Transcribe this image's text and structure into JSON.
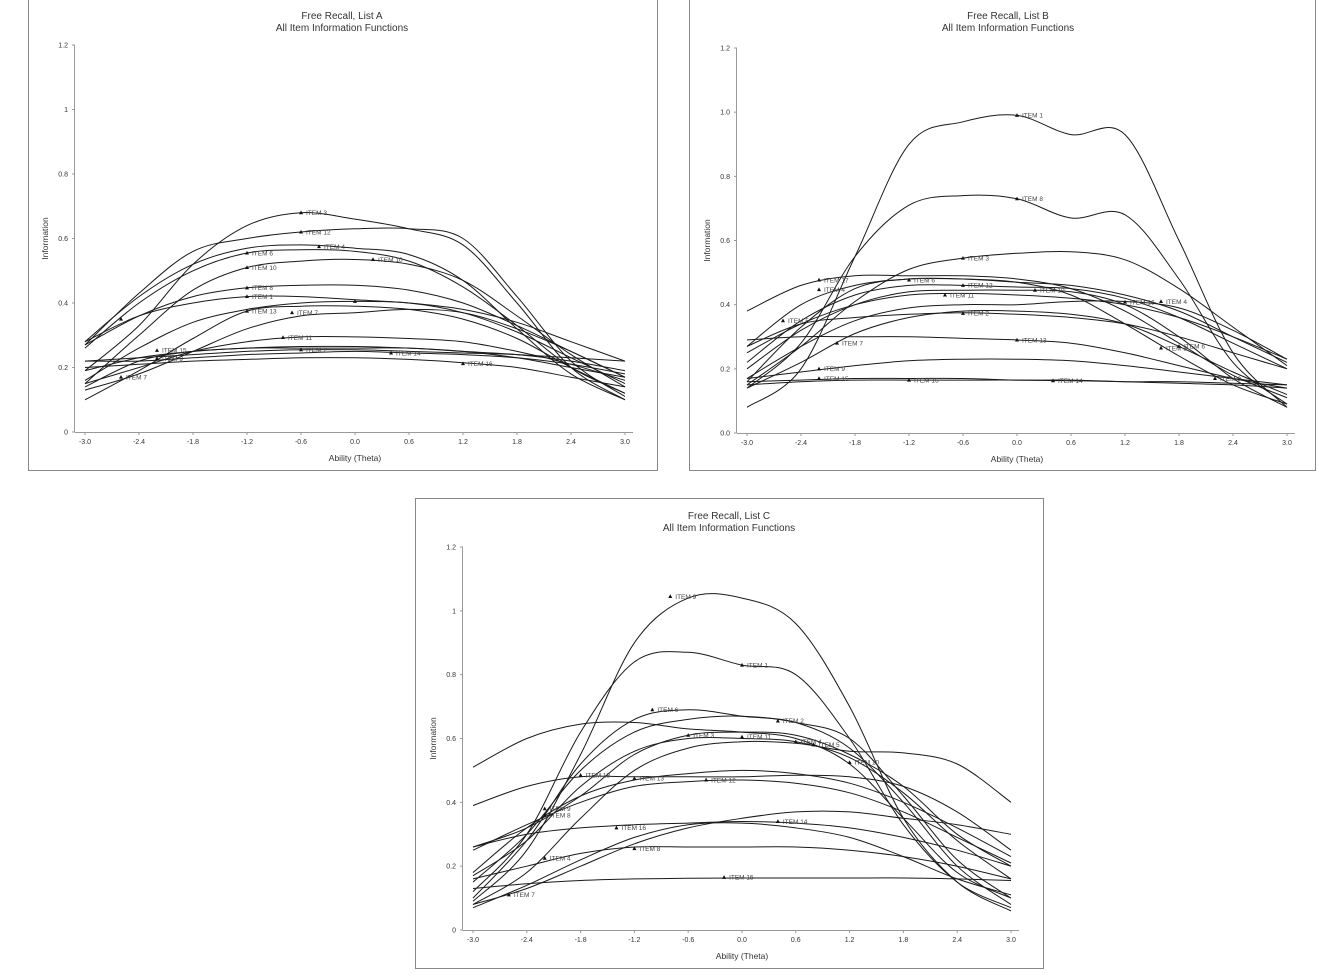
{
  "chart_data": [
    {
      "type": "line",
      "title": "Free Recall, List A",
      "subtitle": "All Item Information Functions",
      "xlabel": "Ability (Theta)",
      "ylabel": "Information",
      "xlim": [
        -3.0,
        3.0
      ],
      "ylim": [
        0,
        1.2
      ],
      "x_ticks": [
        "-3.0",
        "-2.4",
        "-1.8",
        "-1.2",
        "-0.6",
        "0.0",
        "0.6",
        "1.2",
        "1.8",
        "2.4",
        "3.0"
      ],
      "y_ticks": [
        "0",
        "0.2",
        "0.4",
        "0.6",
        "0.8",
        "1",
        "1.2"
      ],
      "grid": false,
      "x": [
        -3,
        -2.4,
        -1.8,
        -1.2,
        -0.6,
        0,
        0.6,
        1.2,
        1.8,
        2.4,
        3
      ],
      "curves": [
        [
          0.19,
          0.33,
          0.52,
          0.64,
          0.68,
          0.66,
          0.63,
          0.58,
          0.4,
          0.2,
          0.1
        ],
        [
          0.27,
          0.43,
          0.56,
          0.6,
          0.62,
          0.63,
          0.63,
          0.6,
          0.42,
          0.22,
          0.11
        ],
        [
          0.28,
          0.42,
          0.52,
          0.57,
          0.58,
          0.57,
          0.55,
          0.47,
          0.32,
          0.18,
          0.1
        ],
        [
          0.26,
          0.4,
          0.5,
          0.555,
          0.565,
          0.56,
          0.53,
          0.45,
          0.33,
          0.2,
          0.12
        ],
        [
          0.15,
          0.3,
          0.44,
          0.51,
          0.53,
          0.535,
          0.52,
          0.47,
          0.36,
          0.24,
          0.14
        ],
        [
          0.27,
          0.36,
          0.42,
          0.447,
          0.455,
          0.455,
          0.44,
          0.4,
          0.33,
          0.25,
          0.17
        ],
        [
          0.28,
          0.36,
          0.4,
          0.42,
          0.42,
          0.41,
          0.4,
          0.38,
          0.34,
          0.28,
          0.22
        ],
        [
          0.16,
          0.26,
          0.34,
          0.38,
          0.4,
          0.405,
          0.4,
          0.37,
          0.31,
          0.23,
          0.15
        ],
        [
          0.1,
          0.19,
          0.29,
          0.375,
          0.39,
          0.39,
          0.38,
          0.35,
          0.29,
          0.2,
          0.12
        ],
        [
          0.15,
          0.2,
          0.25,
          0.28,
          0.295,
          0.295,
          0.29,
          0.28,
          0.25,
          0.21,
          0.16
        ],
        [
          0.19,
          0.23,
          0.25,
          0.26,
          0.26,
          0.26,
          0.26,
          0.25,
          0.24,
          0.22,
          0.19
        ],
        [
          0.22,
          0.23,
          0.24,
          0.25,
          0.255,
          0.255,
          0.25,
          0.245,
          0.24,
          0.23,
          0.22
        ],
        [
          0.22,
          0.22,
          0.23,
          0.24,
          0.245,
          0.25,
          0.245,
          0.24,
          0.23,
          0.21,
          0.18
        ],
        [
          0.14,
          0.22,
          0.25,
          0.26,
          0.265,
          0.265,
          0.26,
          0.25,
          0.23,
          0.2,
          0.17
        ],
        [
          0.2,
          0.21,
          0.22,
          0.225,
          0.23,
          0.23,
          0.225,
          0.215,
          0.2,
          0.17,
          0.14
        ],
        [
          0.13,
          0.18,
          0.25,
          0.32,
          0.36,
          0.37,
          0.38,
          0.37,
          0.32,
          0.25,
          0.17
        ]
      ],
      "markers": [
        {
          "label": "ITEM 3",
          "x": -0.6,
          "y": 0.68
        },
        {
          "label": "ITEM 12",
          "x": -0.6,
          "y": 0.62
        },
        {
          "label": "ITEM 4",
          "x": -0.4,
          "y": 0.575
        },
        {
          "label": "ITEM 6",
          "x": -1.2,
          "y": 0.555
        },
        {
          "label": "ITEM 10",
          "x": 0.2,
          "y": 0.535
        },
        {
          "label": "ITEM 10",
          "x": -1.2,
          "y": 0.51
        },
        {
          "label": "ITEM 8",
          "x": -1.2,
          "y": 0.447
        },
        {
          "label": "ITEM 1",
          "x": -1.2,
          "y": 0.42
        },
        {
          "label": "",
          "x": 0.0,
          "y": 0.405
        },
        {
          "label": "",
          "x": -2.6,
          "y": 0.35
        },
        {
          "label": "ITEM 13",
          "x": -1.2,
          "y": 0.375
        },
        {
          "label": "ITEM 7",
          "x": -0.7,
          "y": 0.37
        },
        {
          "label": "ITEM 11",
          "x": -0.8,
          "y": 0.293
        },
        {
          "label": "ITEM 15",
          "x": -2.2,
          "y": 0.253
        },
        {
          "label": "ITEM 2",
          "x": -0.6,
          "y": 0.255
        },
        {
          "label": "ITEM 14",
          "x": 0.4,
          "y": 0.245
        },
        {
          "label": "ITEM 9",
          "x": -2.2,
          "y": 0.228
        },
        {
          "label": "ITEM 16",
          "x": 1.2,
          "y": 0.212
        },
        {
          "label": "ITEM 7",
          "x": -2.6,
          "y": 0.17
        }
      ]
    },
    {
      "type": "line",
      "title": "Free Recall, List B",
      "subtitle": "All Item Information Functions",
      "xlabel": "Ability (Theta)",
      "ylabel": "Information",
      "xlim": [
        -3.0,
        3.0
      ],
      "ylim": [
        0,
        1.2
      ],
      "x_ticks": [
        "-3.0",
        "-2.4",
        "-1.8",
        "-1.2",
        "-0.6",
        "0.0",
        "0.6",
        "1.2",
        "1.8",
        "2.4",
        "3.0"
      ],
      "y_ticks": [
        "0.0",
        "0.2",
        "0.4",
        "0.6",
        "0.8",
        "1.0",
        "1.2"
      ],
      "grid": false,
      "x": [
        -3,
        -2.4,
        -1.8,
        -1.2,
        -0.6,
        0,
        0.6,
        1.2,
        1.8,
        2.4,
        3
      ],
      "curves": [
        [
          0.08,
          0.2,
          0.55,
          0.9,
          0.97,
          0.99,
          0.93,
          0.93,
          0.6,
          0.25,
          0.08
        ],
        [
          0.14,
          0.28,
          0.55,
          0.71,
          0.74,
          0.73,
          0.67,
          0.68,
          0.48,
          0.22,
          0.09
        ],
        [
          0.15,
          0.27,
          0.41,
          0.51,
          0.545,
          0.56,
          0.565,
          0.54,
          0.45,
          0.33,
          0.21
        ],
        [
          0.38,
          0.46,
          0.49,
          0.49,
          0.49,
          0.48,
          0.45,
          0.38,
          0.28,
          0.18,
          0.11
        ],
        [
          0.27,
          0.4,
          0.46,
          0.48,
          0.48,
          0.47,
          0.46,
          0.43,
          0.38,
          0.3,
          0.22
        ],
        [
          0.16,
          0.33,
          0.45,
          0.48,
          0.48,
          0.47,
          0.43,
          0.34,
          0.24,
          0.15,
          0.09
        ],
        [
          0.22,
          0.35,
          0.43,
          0.46,
          0.46,
          0.455,
          0.45,
          0.42,
          0.36,
          0.28,
          0.2
        ],
        [
          0.2,
          0.32,
          0.4,
          0.44,
          0.445,
          0.445,
          0.44,
          0.4,
          0.3,
          0.17,
          0.08
        ],
        [
          0.25,
          0.34,
          0.4,
          0.43,
          0.435,
          0.43,
          0.42,
          0.4,
          0.36,
          0.3,
          0.23
        ],
        [
          0.17,
          0.27,
          0.35,
          0.39,
          0.4,
          0.4,
          0.41,
          0.41,
          0.39,
          0.32,
          0.23
        ],
        [
          0.27,
          0.34,
          0.36,
          0.37,
          0.375,
          0.37,
          0.36,
          0.34,
          0.3,
          0.25,
          0.2
        ],
        [
          0.29,
          0.3,
          0.3,
          0.3,
          0.295,
          0.29,
          0.28,
          0.25,
          0.21,
          0.17,
          0.14
        ],
        [
          0.14,
          0.22,
          0.31,
          0.36,
          0.38,
          0.38,
          0.37,
          0.34,
          0.27,
          0.19,
          0.12
        ],
        [
          0.17,
          0.19,
          0.21,
          0.225,
          0.23,
          0.23,
          0.225,
          0.21,
          0.19,
          0.17,
          0.15
        ],
        [
          0.16,
          0.165,
          0.17,
          0.17,
          0.17,
          0.165,
          0.165,
          0.16,
          0.16,
          0.155,
          0.15
        ],
        [
          0.15,
          0.16,
          0.165,
          0.165,
          0.165,
          0.165,
          0.163,
          0.16,
          0.155,
          0.15,
          0.14
        ]
      ],
      "markers": [
        {
          "label": "ITEM 1",
          "x": 0.0,
          "y": 0.99
        },
        {
          "label": "ITEM 8",
          "x": 0.0,
          "y": 0.73
        },
        {
          "label": "ITEM 3",
          "x": -0.6,
          "y": 0.545
        },
        {
          "label": "ITEM 17",
          "x": -2.2,
          "y": 0.477
        },
        {
          "label": "ITEM 4",
          "x": -2.2,
          "y": 0.447
        },
        {
          "label": "ITEM 6",
          "x": -1.2,
          "y": 0.477
        },
        {
          "label": "ITEM 12",
          "x": -0.6,
          "y": 0.46
        },
        {
          "label": "ITEM 10",
          "x": 0.2,
          "y": 0.445
        },
        {
          "label": "ITEM 11",
          "x": -0.8,
          "y": 0.43
        },
        {
          "label": "ITEM 16",
          "x": 1.2,
          "y": 0.408
        },
        {
          "label": "ITEM 4",
          "x": 1.6,
          "y": 0.41
        },
        {
          "label": "ITEM 5",
          "x": -2.6,
          "y": 0.35
        },
        {
          "label": "ITEM 2",
          "x": -0.6,
          "y": 0.373
        },
        {
          "label": "ITEM 7",
          "x": -2.0,
          "y": 0.28
        },
        {
          "label": "ITEM 13",
          "x": 0.0,
          "y": 0.29
        },
        {
          "label": "ITEM 3",
          "x": 1.6,
          "y": 0.265
        },
        {
          "label": "ITEM 6",
          "x": 1.8,
          "y": 0.27
        },
        {
          "label": "ITEM 9",
          "x": -2.2,
          "y": 0.2
        },
        {
          "label": "ITEM 9",
          "x": 2.2,
          "y": 0.17
        },
        {
          "label": "ITEM 15",
          "x": -2.2,
          "y": 0.17
        },
        {
          "label": "ITEM 16",
          "x": -1.2,
          "y": 0.165
        },
        {
          "label": "ITEM 14",
          "x": 0.4,
          "y": 0.163
        }
      ]
    },
    {
      "type": "line",
      "title": "Free Recall, List C",
      "subtitle": "All Item Information Functions",
      "xlabel": "Ability (Theta)",
      "ylabel": "Information",
      "xlim": [
        -3.0,
        3.0
      ],
      "ylim": [
        0,
        1.2
      ],
      "x_ticks": [
        "-3.0",
        "-2.4",
        "-1.8",
        "-1.2",
        "-0.6",
        "0.0",
        "0.6",
        "1.2",
        "1.8",
        "2.4",
        "3.0"
      ],
      "y_ticks": [
        "0",
        "0.2",
        "0.4",
        "0.6",
        "0.8",
        "1",
        "1.2"
      ],
      "grid": false,
      "x": [
        -3,
        -2.4,
        -1.8,
        -1.2,
        -0.6,
        0,
        0.6,
        1.2,
        1.8,
        2.4,
        3
      ],
      "curves": [
        [
          0.09,
          0.25,
          0.55,
          0.9,
          1.04,
          1.04,
          0.96,
          0.7,
          0.35,
          0.15,
          0.06
        ],
        [
          0.12,
          0.3,
          0.62,
          0.84,
          0.87,
          0.83,
          0.8,
          0.6,
          0.33,
          0.15,
          0.07
        ],
        [
          0.1,
          0.28,
          0.52,
          0.66,
          0.69,
          0.67,
          0.65,
          0.57,
          0.4,
          0.2,
          0.08
        ],
        [
          0.15,
          0.3,
          0.5,
          0.62,
          0.66,
          0.67,
          0.65,
          0.6,
          0.42,
          0.22,
          0.1
        ],
        [
          0.26,
          0.32,
          0.42,
          0.55,
          0.61,
          0.62,
          0.61,
          0.55,
          0.45,
          0.3,
          0.2
        ],
        [
          0.17,
          0.28,
          0.45,
          0.56,
          0.6,
          0.6,
          0.59,
          0.54,
          0.43,
          0.28,
          0.16
        ],
        [
          0.08,
          0.18,
          0.35,
          0.5,
          0.57,
          0.59,
          0.585,
          0.56,
          0.555,
          0.52,
          0.4
        ],
        [
          0.51,
          0.6,
          0.645,
          0.65,
          0.63,
          0.62,
          0.6,
          0.52,
          0.35,
          0.18,
          0.1
        ],
        [
          0.39,
          0.45,
          0.48,
          0.48,
          0.48,
          0.48,
          0.485,
          0.48,
          0.45,
          0.37,
          0.25
        ],
        [
          0.18,
          0.32,
          0.42,
          0.47,
          0.49,
          0.5,
          0.49,
          0.46,
          0.4,
          0.32,
          0.23
        ],
        [
          0.25,
          0.33,
          0.4,
          0.45,
          0.465,
          0.47,
          0.46,
          0.43,
          0.37,
          0.29,
          0.21
        ],
        [
          0.08,
          0.13,
          0.2,
          0.27,
          0.32,
          0.35,
          0.37,
          0.37,
          0.35,
          0.33,
          0.3
        ],
        [
          0.26,
          0.3,
          0.32,
          0.33,
          0.335,
          0.34,
          0.335,
          0.32,
          0.29,
          0.25,
          0.2
        ],
        [
          0.16,
          0.2,
          0.24,
          0.26,
          0.26,
          0.26,
          0.26,
          0.25,
          0.23,
          0.2,
          0.16
        ],
        [
          0.13,
          0.145,
          0.155,
          0.16,
          0.162,
          0.163,
          0.163,
          0.163,
          0.163,
          0.16,
          0.155
        ],
        [
          0.07,
          0.14,
          0.22,
          0.29,
          0.33,
          0.335,
          0.32,
          0.29,
          0.23,
          0.16,
          0.11
        ]
      ],
      "markers": [
        {
          "label": "ITEM 9",
          "x": -0.8,
          "y": 1.045
        },
        {
          "label": "ITEM 1",
          "x": 0.0,
          "y": 0.83
        },
        {
          "label": "ITEM 6",
          "x": -1.0,
          "y": 0.69
        },
        {
          "label": "ITEM 2",
          "x": 0.4,
          "y": 0.655
        },
        {
          "label": "ITEM 3",
          "x": -0.6,
          "y": 0.61
        },
        {
          "label": "ITEM 11",
          "x": 0.0,
          "y": 0.605
        },
        {
          "label": "ITEM 4",
          "x": 0.6,
          "y": 0.59
        },
        {
          "label": "ITEM 5",
          "x": 0.8,
          "y": 0.58
        },
        {
          "label": "ITEM 10",
          "x": 1.2,
          "y": 0.525
        },
        {
          "label": "ITEM 18",
          "x": -1.8,
          "y": 0.485
        },
        {
          "label": "ITEM 13",
          "x": -1.2,
          "y": 0.475
        },
        {
          "label": "ITEM 12",
          "x": -0.4,
          "y": 0.47
        },
        {
          "label": "ITEM 9",
          "x": -2.2,
          "y": 0.38
        },
        {
          "label": "ITEM 8",
          "x": -2.2,
          "y": 0.36
        },
        {
          "label": "ITEM 16",
          "x": -1.4,
          "y": 0.32
        },
        {
          "label": "ITEM 14",
          "x": 0.4,
          "y": 0.34
        },
        {
          "label": "ITEM 8",
          "x": -1.2,
          "y": 0.255
        },
        {
          "label": "ITEM 4",
          "x": -2.2,
          "y": 0.225
        },
        {
          "label": "ITEM 15",
          "x": -0.2,
          "y": 0.165
        },
        {
          "label": "ITEM 7",
          "x": -2.6,
          "y": 0.11
        }
      ]
    }
  ]
}
